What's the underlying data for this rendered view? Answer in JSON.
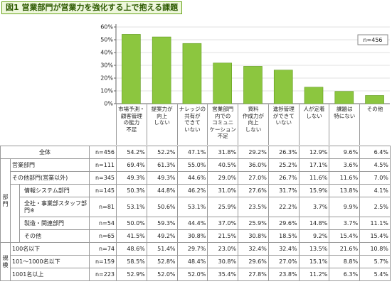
{
  "title": "図1 営業部門が営業力を強化する上で抱える課題",
  "chart_data": {
    "type": "bar",
    "categories": [
      "市場予測・\n顧客管理\nの能力\n不足",
      "提案力が\n向上\nしない",
      "ナレッジの\n共有が\nできて\nいない",
      "営業部門\n内での\nコミュニ\nケーション\n不足",
      "資料\n作成力が\n向上\nしない",
      "進捗管理\nができて\nいない",
      "人が定着\nしない",
      "課題は\n特にない",
      "その他"
    ],
    "values": [
      54.2,
      52.2,
      47.1,
      31.8,
      29.2,
      26.3,
      12.9,
      9.6,
      6.4
    ],
    "color": "#8cc63f",
    "ylim": [
      0,
      60
    ],
    "yticks": [
      {
        "value": 0,
        "label": "0%"
      },
      {
        "value": 10,
        "label": "10%"
      },
      {
        "value": 20,
        "label": "20%"
      },
      {
        "value": 30,
        "label": "30%"
      },
      {
        "value": 40,
        "label": "40%"
      },
      {
        "value": 50,
        "label": "50%"
      },
      {
        "value": 60,
        "label": "60%"
      }
    ],
    "grid": true,
    "legend": "n=456"
  },
  "table": {
    "total": {
      "label": "全体",
      "n": "n=456",
      "values": [
        "54.2%",
        "52.2%",
        "47.1%",
        "31.8%",
        "29.2%",
        "26.3%",
        "12.9%",
        "9.6%",
        "6.4%"
      ]
    },
    "groups": [
      {
        "label": "部門",
        "rows": [
          {
            "label": "営業部門",
            "n": "n=111",
            "values": [
              "69.4%",
              "61.3%",
              "55.0%",
              "40.5%",
              "36.0%",
              "25.2%",
              "17.1%",
              "3.6%",
              "4.5%"
            ]
          },
          {
            "label": "その他部門(営業以外)",
            "n": "n=345",
            "values": [
              "49.3%",
              "49.3%",
              "44.6%",
              "29.0%",
              "27.0%",
              "26.7%",
              "11.6%",
              "11.6%",
              "7.0%"
            ],
            "sub": [
              {
                "label": "情報システム部門",
                "n": "n=145",
                "values": [
                  "50.3%",
                  "44.8%",
                  "46.2%",
                  "31.0%",
                  "27.6%",
                  "31.7%",
                  "15.9%",
                  "13.8%",
                  "4.1%"
                ]
              },
              {
                "label": "全社・事業部スタッフ部門※",
                "n": "n=81",
                "values": [
                  "53.1%",
                  "50.6%",
                  "53.1%",
                  "25.9%",
                  "23.5%",
                  "22.2%",
                  "3.7%",
                  "9.9%",
                  "2.5%"
                ]
              },
              {
                "label": "製造・関連部門",
                "n": "n=54",
                "values": [
                  "50.0%",
                  "59.3%",
                  "44.4%",
                  "37.0%",
                  "25.9%",
                  "29.6%",
                  "14.8%",
                  "3.7%",
                  "11.1%"
                ]
              },
              {
                "label": "その他",
                "n": "n=65",
                "values": [
                  "41.5%",
                  "49.2%",
                  "30.8%",
                  "21.5%",
                  "30.8%",
                  "18.5%",
                  "9.2%",
                  "15.4%",
                  "15.4%"
                ]
              }
            ]
          }
        ]
      },
      {
        "label": "規模",
        "rows": [
          {
            "label": "100名以下",
            "n": "n=74",
            "values": [
              "48.6%",
              "51.4%",
              "29.7%",
              "23.0%",
              "32.4%",
              "32.4%",
              "13.5%",
              "21.6%",
              "10.8%"
            ]
          },
          {
            "label": "101〜1000名以下",
            "n": "n=159",
            "values": [
              "58.5%",
              "52.8%",
              "48.4%",
              "30.8%",
              "29.6%",
              "27.0%",
              "15.1%",
              "8.8%",
              "5.7%"
            ]
          },
          {
            "label": "1001名以上",
            "n": "n=223",
            "values": [
              "52.9%",
              "52.0%",
              "52.0%",
              "35.4%",
              "27.8%",
              "23.8%",
              "11.2%",
              "6.3%",
              "5.4%"
            ]
          }
        ]
      }
    ]
  }
}
